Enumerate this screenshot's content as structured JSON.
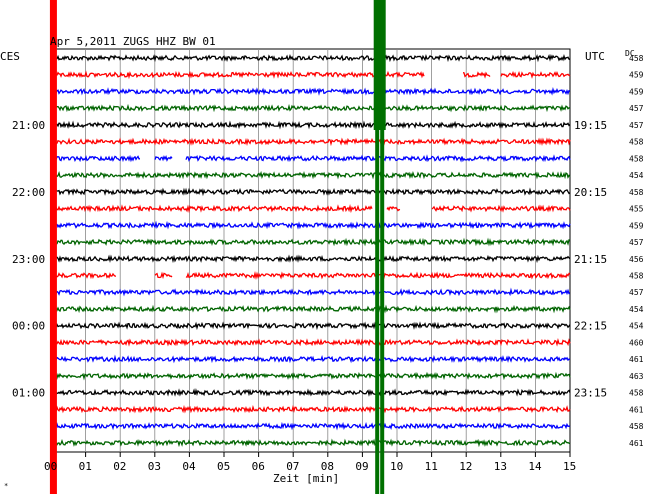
{
  "chart_data": {
    "type": "line",
    "title": "Apr 5,2011   ZUGS HHZ BW 01",
    "left_axis_label": "CES",
    "right_axis_label": "UTC",
    "dc_label": "DC",
    "xlabel": "Zeit [min]",
    "x_ticks": [
      "00",
      "01",
      "02",
      "03",
      "04",
      "05",
      "06",
      "07",
      "08",
      "09",
      "10",
      "11",
      "12",
      "13",
      "14",
      "15"
    ],
    "xlim": [
      0,
      15
    ],
    "grid": true,
    "trace_colors": [
      "#000000",
      "#ff0000",
      "#0000ff",
      "#006400"
    ],
    "left_time_labels": [
      {
        "row": 4,
        "text": "21:00"
      },
      {
        "row": 8,
        "text": "22:00"
      },
      {
        "row": 12,
        "text": "23:00"
      },
      {
        "row": 16,
        "text": "00:00"
      },
      {
        "row": 20,
        "text": "01:00"
      }
    ],
    "right_time_labels": [
      {
        "row": 4,
        "text": "19:15"
      },
      {
        "row": 8,
        "text": "20:15"
      },
      {
        "row": 12,
        "text": "21:15"
      },
      {
        "row": 16,
        "text": "22:15"
      },
      {
        "row": 20,
        "text": "23:15"
      }
    ],
    "dc_values": [
      "458",
      "459",
      "459",
      "457",
      "457",
      "458",
      "458",
      "454",
      "458",
      "455",
      "459",
      "457",
      "456",
      "458",
      "457",
      "454",
      "454",
      "460",
      "461",
      "463",
      "458",
      "461",
      "458",
      "461"
    ],
    "gaps": [
      {
        "row": 1,
        "from": 10.8,
        "to": 11.9
      },
      {
        "row": 1,
        "from": 12.7,
        "to": 13.0
      },
      {
        "row": 6,
        "from": 2.6,
        "to": 3.0
      },
      {
        "row": 6,
        "from": 3.5,
        "to": 3.9
      },
      {
        "row": 9,
        "from": 9.3,
        "to": 9.7
      },
      {
        "row": 9,
        "from": 10.1,
        "to": 11.0
      },
      {
        "row": 13,
        "from": 1.9,
        "to": 3.0
      },
      {
        "row": 13,
        "from": 3.5,
        "to": 3.9
      }
    ],
    "markers": [
      {
        "color": "#ff0000",
        "x": 0.07,
        "label": ""
      },
      {
        "color": "#007000",
        "x": 9.5,
        "label": ""
      }
    ]
  }
}
